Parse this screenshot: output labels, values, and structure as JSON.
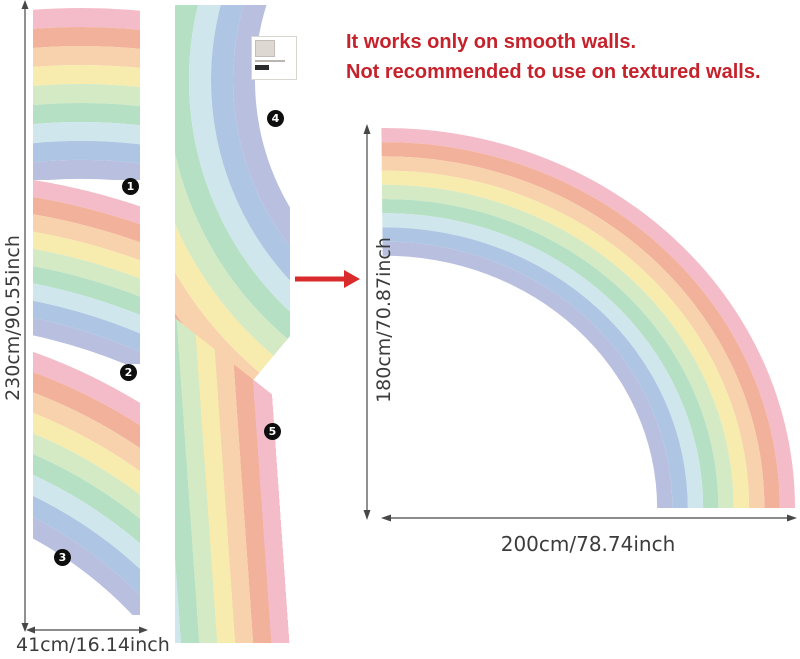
{
  "warning": {
    "line1": "It works only on smooth walls.",
    "line2": "Not recommended to use on textured walls."
  },
  "sheet": {
    "height_label": "230cm/90.55inch",
    "width_label": "41cm/16.14inch",
    "piece_numbers": [
      "1",
      "2",
      "3",
      "4",
      "5"
    ]
  },
  "assembled": {
    "height_label": "180cm/70.87inch",
    "width_label": "200cm/78.74inch"
  },
  "rainbow_colors": [
    "#f4bcc8",
    "#f2b19b",
    "#f8d2ac",
    "#f7ebae",
    "#d4eac4",
    "#b6e0c4",
    "#cfe7ec",
    "#aec6e3",
    "#b9bfdf"
  ],
  "colors": {
    "warning_text": "#c5222c",
    "arrow": "#d92b2b",
    "dimension_line": "#474747",
    "badge_bg": "#0e0e0e",
    "badge_fg": "#ffffff"
  }
}
